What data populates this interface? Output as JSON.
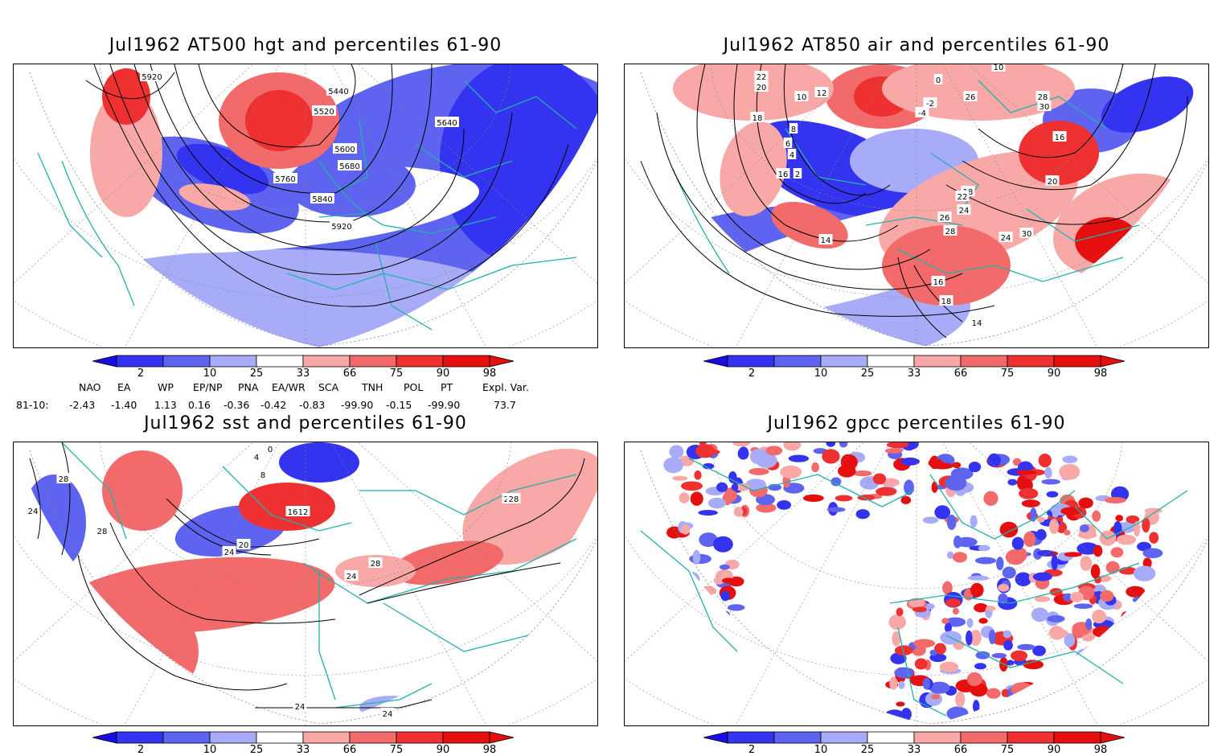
{
  "panels": [
    {
      "id": "p1",
      "title": "Jul1962 AT500 hgt and percentiles 61-90",
      "contour_labels": [
        "5920",
        "5440",
        "5520",
        "5600",
        "5680",
        "5640",
        "5760",
        "5840",
        "5920"
      ]
    },
    {
      "id": "p2",
      "title": "Jul1962 AT850 air and percentiles 61-90",
      "contour_labels": [
        "22",
        "20",
        "18",
        "16",
        "14",
        "12",
        "10",
        "8",
        "6",
        "4",
        "2",
        "0",
        "-2",
        "-4",
        "10",
        "26",
        "28",
        "30",
        "16",
        "20",
        "18",
        "22",
        "24",
        "26",
        "28",
        "30",
        "24",
        "16",
        "18",
        "14"
      ]
    },
    {
      "id": "p3",
      "title": "Jul1962 sst and percentiles 61-90",
      "contour_labels": [
        "28",
        "24",
        "28",
        "0",
        "4",
        "8",
        "12",
        "16",
        "20",
        "24",
        "24",
        "28",
        "24",
        "28",
        "24",
        "24"
      ]
    },
    {
      "id": "p4",
      "title": "Jul1962 gpcc percentiles 61-90",
      "contour_labels": []
    }
  ],
  "colorbar": {
    "labels": [
      "2",
      "10",
      "25",
      "33",
      "66",
      "75",
      "90",
      "98"
    ],
    "colors": [
      "#1a0de0",
      "#3434f0",
      "#5e64f0",
      "#a8acf8",
      "#ffffff",
      "#f9a8a8",
      "#f36a6a",
      "#ee3030",
      "#e60f0f"
    ]
  },
  "indices": {
    "headers": [
      "NAO",
      "EA",
      "WP",
      "EP/NP",
      "PNA",
      "EA/WR",
      "SCA",
      "TNH",
      "POL",
      "PT",
      "Expl. Var."
    ],
    "row_label": "81-10:",
    "values": [
      "-2.43",
      "-1.40",
      "1.13",
      "0.16",
      "-0.36",
      "-0.42",
      "-0.83",
      "-99.90",
      "-0.15",
      "-99.90",
      "73.7"
    ]
  },
  "colors": {
    "coast": "#20b2aa",
    "contour": "#000000",
    "grid": "#888888"
  }
}
